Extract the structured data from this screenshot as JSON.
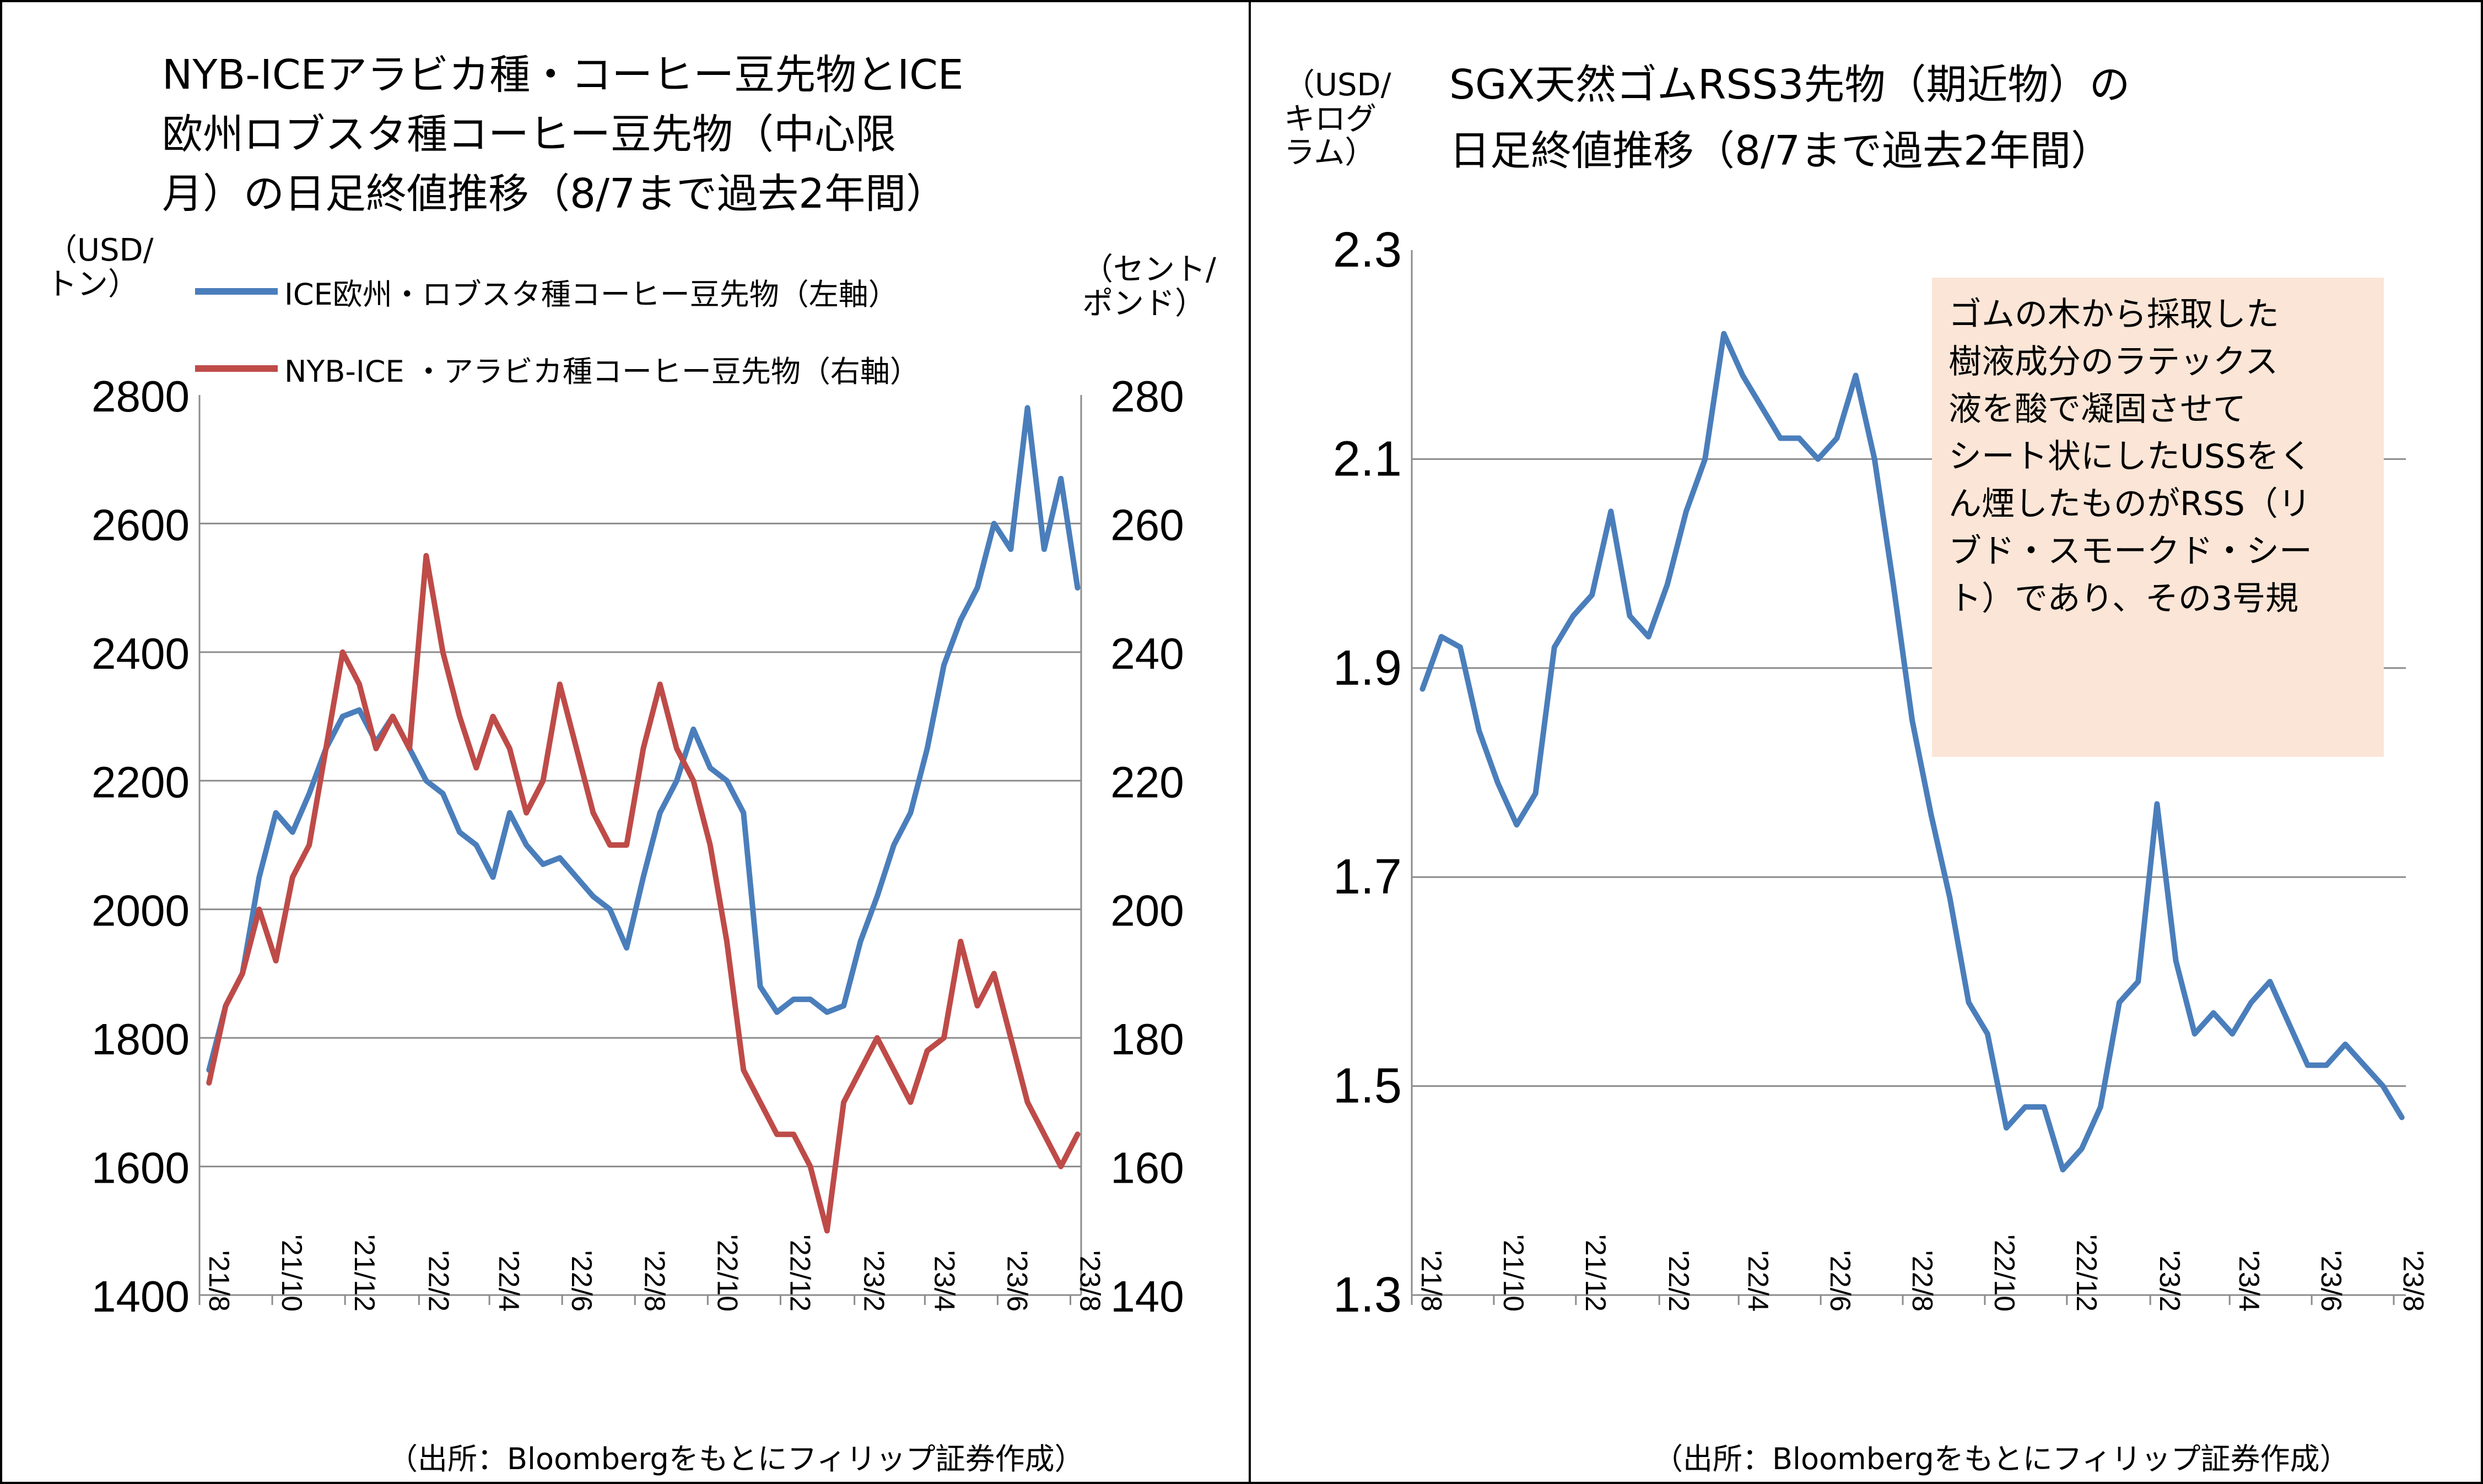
{
  "left": {
    "title_lines": [
      "NYB-ICEアラビカ種・コーヒー豆先物とICE",
      "欧州ロブスタ種コーヒー豆先物（中心限",
      "月）の日足終値推移（8/7まで過去2年間）"
    ],
    "left_unit_lines": [
      "（USD/",
      "トン）"
    ],
    "right_unit_lines": [
      "（セント/",
      "ポンド）"
    ],
    "legend": [
      {
        "label": "ICE欧州・ロブスタ種コーヒー豆先物（左軸）",
        "color": "#4a7ebb"
      },
      {
        "label": "NYB-ICE ・アラビカ種コーヒー豆先物（右軸）",
        "color": "#be4b48"
      }
    ],
    "source": "（出所：Bloombergをもとにフィリップ証券作成）"
  },
  "right": {
    "title_lines": [
      "SGX天然ゴムRSS3先物（期近物）の",
      "日足終値推移（8/7まで過去2年間）"
    ],
    "unit_lines": [
      "（USD/",
      "キログ",
      "ラム）"
    ],
    "note_lines": [
      "ゴムの木から採取した",
      "樹液成分のラテックス",
      "液を酸で凝固させて",
      "シート状にしたUSSをく",
      "ん煙したものがRSS（リ",
      "ブド・スモークド・シー",
      "ト）であり、その3号規"
    ],
    "source": "（出所：Bloombergをもとにフィリップ証券作成）"
  },
  "chart_data": [
    {
      "type": "line",
      "x_ticks": [
        "'21/8",
        "'21/10",
        "'21/12",
        "'22/2",
        "'22/4",
        "'22/6",
        "'22/8",
        "'22/10",
        "'22/12",
        "'23/2",
        "'23/4",
        "'23/6",
        "'23/8"
      ],
      "y_left_ticks": [
        "2800",
        "2600",
        "2400",
        "2200",
        "2000",
        "1800",
        "1600",
        "1400"
      ],
      "y_right_ticks": [
        "280",
        "260",
        "240",
        "220",
        "200",
        "180",
        "160",
        "140"
      ],
      "ylim_left": [
        1400,
        2800
      ],
      "ylim_right": [
        140,
        280
      ],
      "grid": true,
      "series": [
        {
          "name": "ICE欧州・ロブスタ種コーヒー豆先物（左軸）",
          "axis": "left",
          "color": "#4a7ebb",
          "x": [
            "2021-08-09",
            "2021-08-23",
            "2021-09-06",
            "2021-09-20",
            "2021-10-04",
            "2021-10-18",
            "2021-11-01",
            "2021-11-15",
            "2021-11-29",
            "2021-12-13",
            "2021-12-27",
            "2022-01-10",
            "2022-01-24",
            "2022-02-07",
            "2022-02-21",
            "2022-03-07",
            "2022-03-21",
            "2022-04-04",
            "2022-04-18",
            "2022-05-02",
            "2022-05-16",
            "2022-05-30",
            "2022-06-13",
            "2022-06-27",
            "2022-07-11",
            "2022-07-25",
            "2022-08-08",
            "2022-08-22",
            "2022-09-05",
            "2022-09-19",
            "2022-10-03",
            "2022-10-17",
            "2022-10-31",
            "2022-11-14",
            "2022-11-28",
            "2022-12-12",
            "2022-12-26",
            "2023-01-09",
            "2023-01-23",
            "2023-02-06",
            "2023-02-20",
            "2023-03-06",
            "2023-03-20",
            "2023-04-03",
            "2023-04-17",
            "2023-05-01",
            "2023-05-15",
            "2023-05-29",
            "2023-06-12",
            "2023-06-26",
            "2023-07-10",
            "2023-07-24",
            "2023-08-07"
          ],
          "values": [
            1750,
            1850,
            1900,
            2050,
            2150,
            2120,
            2180,
            2250,
            2300,
            2310,
            2260,
            2300,
            2250,
            2200,
            2180,
            2120,
            2100,
            2050,
            2150,
            2100,
            2070,
            2080,
            2050,
            2020,
            2000,
            1940,
            2050,
            2150,
            2200,
            2280,
            2220,
            2200,
            2150,
            1880,
            1840,
            1860,
            1860,
            1840,
            1850,
            1950,
            2020,
            2100,
            2150,
            2250,
            2380,
            2450,
            2500,
            2600,
            2560,
            2780,
            2560,
            2670,
            2500
          ]
        },
        {
          "name": "NYB-ICE ・アラビカ種コーヒー豆先物（右軸）",
          "axis": "right",
          "color": "#be4b48",
          "x": [
            "2021-08-09",
            "2021-08-23",
            "2021-09-06",
            "2021-09-20",
            "2021-10-04",
            "2021-10-18",
            "2021-11-01",
            "2021-11-15",
            "2021-11-29",
            "2021-12-13",
            "2021-12-27",
            "2022-01-10",
            "2022-01-24",
            "2022-02-07",
            "2022-02-21",
            "2022-03-07",
            "2022-03-21",
            "2022-04-04",
            "2022-04-18",
            "2022-05-02",
            "2022-05-16",
            "2022-05-30",
            "2022-06-13",
            "2022-06-27",
            "2022-07-11",
            "2022-07-25",
            "2022-08-08",
            "2022-08-22",
            "2022-09-05",
            "2022-09-19",
            "2022-10-03",
            "2022-10-17",
            "2022-10-31",
            "2022-11-14",
            "2022-11-28",
            "2022-12-12",
            "2022-12-26",
            "2023-01-09",
            "2023-01-23",
            "2023-02-06",
            "2023-02-20",
            "2023-03-06",
            "2023-03-20",
            "2023-04-03",
            "2023-04-17",
            "2023-05-01",
            "2023-05-15",
            "2023-05-29",
            "2023-06-12",
            "2023-06-26",
            "2023-07-10",
            "2023-07-24",
            "2023-08-07"
          ],
          "values": [
            173,
            185,
            190,
            200,
            192,
            205,
            210,
            225,
            240,
            235,
            225,
            230,
            225,
            255,
            240,
            230,
            222,
            230,
            225,
            215,
            220,
            235,
            225,
            215,
            210,
            210,
            225,
            235,
            225,
            220,
            210,
            195,
            175,
            170,
            165,
            165,
            160,
            150,
            170,
            175,
            180,
            175,
            170,
            178,
            180,
            195,
            185,
            190,
            180,
            170,
            165,
            160,
            165
          ]
        }
      ]
    },
    {
      "type": "line",
      "x_ticks": [
        "'21/8",
        "'21/10",
        "'21/12",
        "'22/2",
        "'22/4",
        "'22/6",
        "'22/8",
        "'22/10",
        "'22/12",
        "'23/2",
        "'23/4",
        "'23/6",
        "'23/8"
      ],
      "y_ticks": [
        "2.3",
        "2.1",
        "1.9",
        "1.7",
        "1.5",
        "1.3"
      ],
      "ylim": [
        1.3,
        2.3
      ],
      "grid": true,
      "series": [
        {
          "name": "SGX天然ゴムRSS3先物（期近物）",
          "color": "#4a7ebb",
          "x": [
            "2021-08-09",
            "2021-08-23",
            "2021-09-06",
            "2021-09-20",
            "2021-10-04",
            "2021-10-18",
            "2021-11-01",
            "2021-11-15",
            "2021-11-29",
            "2021-12-13",
            "2021-12-27",
            "2022-01-10",
            "2022-01-24",
            "2022-02-07",
            "2022-02-21",
            "2022-03-07",
            "2022-03-21",
            "2022-04-04",
            "2022-04-18",
            "2022-05-02",
            "2022-05-16",
            "2022-05-30",
            "2022-06-13",
            "2022-06-27",
            "2022-07-11",
            "2022-07-25",
            "2022-08-08",
            "2022-08-22",
            "2022-09-05",
            "2022-09-19",
            "2022-10-03",
            "2022-10-17",
            "2022-10-31",
            "2022-11-14",
            "2022-11-28",
            "2022-12-12",
            "2022-12-26",
            "2023-01-09",
            "2023-01-23",
            "2023-02-06",
            "2023-02-20",
            "2023-03-06",
            "2023-03-20",
            "2023-04-03",
            "2023-04-17",
            "2023-05-01",
            "2023-05-15",
            "2023-05-29",
            "2023-06-12",
            "2023-06-26",
            "2023-07-10",
            "2023-07-24",
            "2023-08-07"
          ],
          "values": [
            1.88,
            1.93,
            1.92,
            1.84,
            1.79,
            1.75,
            1.78,
            1.92,
            1.95,
            1.97,
            2.05,
            1.95,
            1.93,
            1.98,
            2.05,
            2.1,
            2.22,
            2.18,
            2.15,
            2.12,
            2.12,
            2.1,
            2.12,
            2.18,
            2.1,
            1.98,
            1.85,
            1.76,
            1.68,
            1.58,
            1.55,
            1.46,
            1.48,
            1.48,
            1.42,
            1.44,
            1.48,
            1.58,
            1.6,
            1.77,
            1.62,
            1.55,
            1.57,
            1.55,
            1.58,
            1.6,
            1.56,
            1.52,
            1.52,
            1.54,
            1.52,
            1.5,
            1.47
          ]
        }
      ]
    }
  ]
}
